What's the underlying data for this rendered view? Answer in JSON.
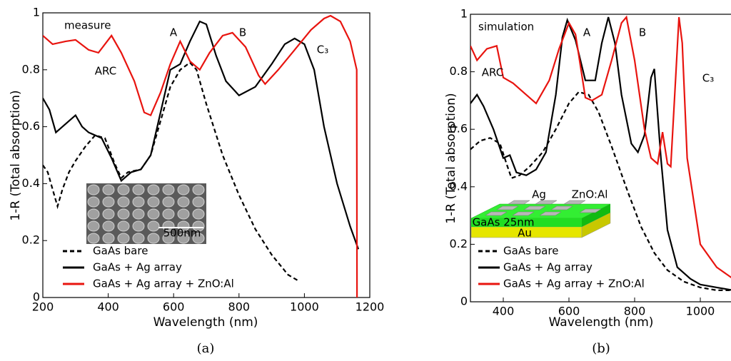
{
  "chart_data": [
    {
      "type": "line",
      "caption": "(a)",
      "xlabel": "Wavelength (nm)",
      "ylabel": "1-R (Total absorption)",
      "xlim": [
        200,
        1200
      ],
      "xticks": [
        200,
        400,
        600,
        800,
        1000,
        1200
      ],
      "ylim": [
        0,
        1
      ],
      "yticks": [
        0,
        0.2,
        0.4,
        0.6,
        0.8,
        1
      ],
      "annotations": [
        "measure",
        "A",
        "B",
        "C₃",
        "ARC"
      ],
      "inset_labels": [
        "500nm"
      ],
      "series": [
        {
          "name": "GaAs bare",
          "color": "#000000",
          "dash": true,
          "x": [
            200,
            215,
            230,
            245,
            260,
            280,
            300,
            330,
            360,
            390,
            420,
            440,
            460,
            500,
            530,
            560,
            590,
            620,
            650,
            670,
            700,
            750,
            800,
            850,
            900,
            950,
            980
          ],
          "values": [
            0.465,
            0.44,
            0.38,
            0.32,
            0.38,
            0.44,
            0.48,
            0.53,
            0.57,
            0.56,
            0.47,
            0.42,
            0.44,
            0.45,
            0.5,
            0.62,
            0.74,
            0.8,
            0.825,
            0.8,
            0.68,
            0.5,
            0.36,
            0.24,
            0.15,
            0.08,
            0.06
          ]
        },
        {
          "name": "GaAs + Ag array",
          "color": "#000000",
          "dash": false,
          "x": [
            200,
            220,
            240,
            260,
            290,
            300,
            320,
            340,
            380,
            410,
            440,
            470,
            500,
            530,
            560,
            590,
            620,
            650,
            680,
            700,
            730,
            760,
            800,
            850,
            900,
            940,
            970,
            1000,
            1030,
            1060,
            1100,
            1140,
            1165
          ],
          "values": [
            0.7,
            0.66,
            0.58,
            0.6,
            0.63,
            0.64,
            0.6,
            0.58,
            0.56,
            0.49,
            0.41,
            0.44,
            0.45,
            0.5,
            0.65,
            0.8,
            0.82,
            0.9,
            0.97,
            0.96,
            0.85,
            0.76,
            0.71,
            0.74,
            0.82,
            0.89,
            0.91,
            0.89,
            0.8,
            0.6,
            0.4,
            0.25,
            0.17
          ]
        },
        {
          "name": "GaAs + Ag array + ZnO:Al",
          "color": "#e8140f",
          "dash": false,
          "x": [
            200,
            230,
            270,
            300,
            340,
            370,
            410,
            440,
            480,
            510,
            530,
            560,
            590,
            620,
            650,
            680,
            710,
            750,
            780,
            820,
            860,
            880,
            920,
            970,
            1020,
            1060,
            1080,
            1110,
            1140,
            1160,
            1161
          ],
          "values": [
            0.92,
            0.89,
            0.9,
            0.905,
            0.87,
            0.86,
            0.92,
            0.86,
            0.76,
            0.65,
            0.64,
            0.72,
            0.82,
            0.9,
            0.83,
            0.8,
            0.86,
            0.92,
            0.93,
            0.88,
            0.78,
            0.75,
            0.8,
            0.87,
            0.94,
            0.98,
            0.99,
            0.97,
            0.9,
            0.8,
            0
          ]
        }
      ]
    },
    {
      "type": "line",
      "caption": "(b)",
      "xlabel": "Wavelength (nm)",
      "ylabel": "1-R (Total absorption)",
      "xlim": [
        300,
        1100
      ],
      "xticks": [
        400,
        600,
        800,
        1000
      ],
      "ylim": [
        0,
        1
      ],
      "yticks": [
        0,
        0.2,
        0.4,
        0.6,
        0.8,
        1
      ],
      "annotations": [
        "simulation",
        "A",
        "B",
        "C₃",
        "ARC"
      ],
      "inset_labels": [
        "Ag",
        "ZnO:Al",
        "GaAs 25nm",
        "Au"
      ],
      "series": [
        {
          "name": "GaAs bare",
          "color": "#000000",
          "dash": true,
          "x": [
            300,
            330,
            360,
            390,
            410,
            425,
            450,
            480,
            520,
            560,
            600,
            630,
            660,
            690,
            730,
            780,
            820,
            860,
            900,
            950,
            1000,
            1050,
            1100
          ],
          "values": [
            0.53,
            0.56,
            0.57,
            0.55,
            0.48,
            0.43,
            0.44,
            0.47,
            0.52,
            0.6,
            0.69,
            0.73,
            0.72,
            0.66,
            0.54,
            0.38,
            0.26,
            0.17,
            0.11,
            0.07,
            0.05,
            0.04,
            0.04
          ]
        },
        {
          "name": "GaAs + Ag array",
          "color": "#000000",
          "dash": false,
          "x": [
            300,
            320,
            340,
            370,
            400,
            420,
            440,
            470,
            500,
            530,
            560,
            580,
            595,
            620,
            650,
            680,
            700,
            720,
            740,
            760,
            790,
            810,
            830,
            850,
            860,
            880,
            900,
            930,
            970,
            1000,
            1050,
            1100
          ],
          "values": [
            0.69,
            0.72,
            0.68,
            0.6,
            0.5,
            0.51,
            0.45,
            0.44,
            0.46,
            0.52,
            0.72,
            0.92,
            0.98,
            0.91,
            0.77,
            0.77,
            0.9,
            0.99,
            0.9,
            0.72,
            0.55,
            0.52,
            0.58,
            0.78,
            0.81,
            0.5,
            0.25,
            0.12,
            0.08,
            0.06,
            0.05,
            0.04
          ]
        },
        {
          "name": "GaAs + Ag array + ZnO:Al",
          "color": "#e8140f",
          "dash": false,
          "x": [
            300,
            320,
            350,
            380,
            400,
            430,
            460,
            500,
            540,
            570,
            600,
            620,
            650,
            670,
            700,
            730,
            760,
            775,
            800,
            830,
            850,
            870,
            885,
            900,
            910,
            925,
            935,
            945,
            960,
            1000,
            1050,
            1100
          ],
          "values": [
            0.89,
            0.84,
            0.88,
            0.89,
            0.78,
            0.76,
            0.73,
            0.69,
            0.77,
            0.88,
            0.97,
            0.93,
            0.71,
            0.7,
            0.72,
            0.84,
            0.97,
            0.99,
            0.84,
            0.6,
            0.5,
            0.48,
            0.59,
            0.48,
            0.47,
            0.78,
            0.99,
            0.9,
            0.5,
            0.2,
            0.12,
            0.08
          ]
        }
      ]
    }
  ]
}
